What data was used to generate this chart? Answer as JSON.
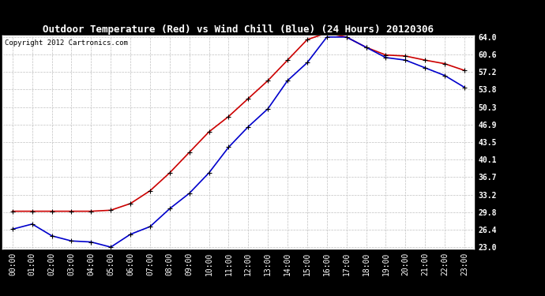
{
  "title": "Outdoor Temperature (Red) vs Wind Chill (Blue) (24 Hours) 20120306",
  "copyright": "Copyright 2012 Cartronics.com",
  "hours": [
    "00:00",
    "01:00",
    "02:00",
    "03:00",
    "04:00",
    "05:00",
    "06:00",
    "07:00",
    "08:00",
    "09:00",
    "10:00",
    "11:00",
    "12:00",
    "13:00",
    "14:00",
    "15:00",
    "16:00",
    "17:00",
    "18:00",
    "19:00",
    "20:00",
    "21:00",
    "22:00",
    "23:00"
  ],
  "temp_red": [
    30.0,
    30.0,
    30.0,
    30.0,
    30.0,
    30.2,
    31.5,
    34.0,
    37.5,
    41.5,
    45.5,
    48.5,
    52.0,
    55.5,
    59.5,
    63.5,
    64.8,
    64.0,
    62.0,
    60.5,
    60.3,
    59.5,
    58.8,
    57.5
  ],
  "wind_chill_blue": [
    26.5,
    27.5,
    25.2,
    24.2,
    24.0,
    23.0,
    25.5,
    27.0,
    30.5,
    33.5,
    37.5,
    42.5,
    46.5,
    50.0,
    55.5,
    59.0,
    64.0,
    64.0,
    62.0,
    60.0,
    59.5,
    58.0,
    56.5,
    54.2
  ],
  "ylim_min": 23.0,
  "ylim_max": 64.0,
  "yticks": [
    23.0,
    26.4,
    29.8,
    33.2,
    36.7,
    40.1,
    43.5,
    46.9,
    50.3,
    53.8,
    57.2,
    60.6,
    64.0
  ],
  "bg_color": "#000000",
  "plot_bg_color": "#ffffff",
  "title_bg_color": "#000000",
  "title_fg_color": "#ffffff",
  "grid_color": "#c0c0c0",
  "red_color": "#cc0000",
  "blue_color": "#0000cc",
  "title_fontsize": 9,
  "tick_fontsize": 7,
  "copyright_fontsize": 6.5
}
